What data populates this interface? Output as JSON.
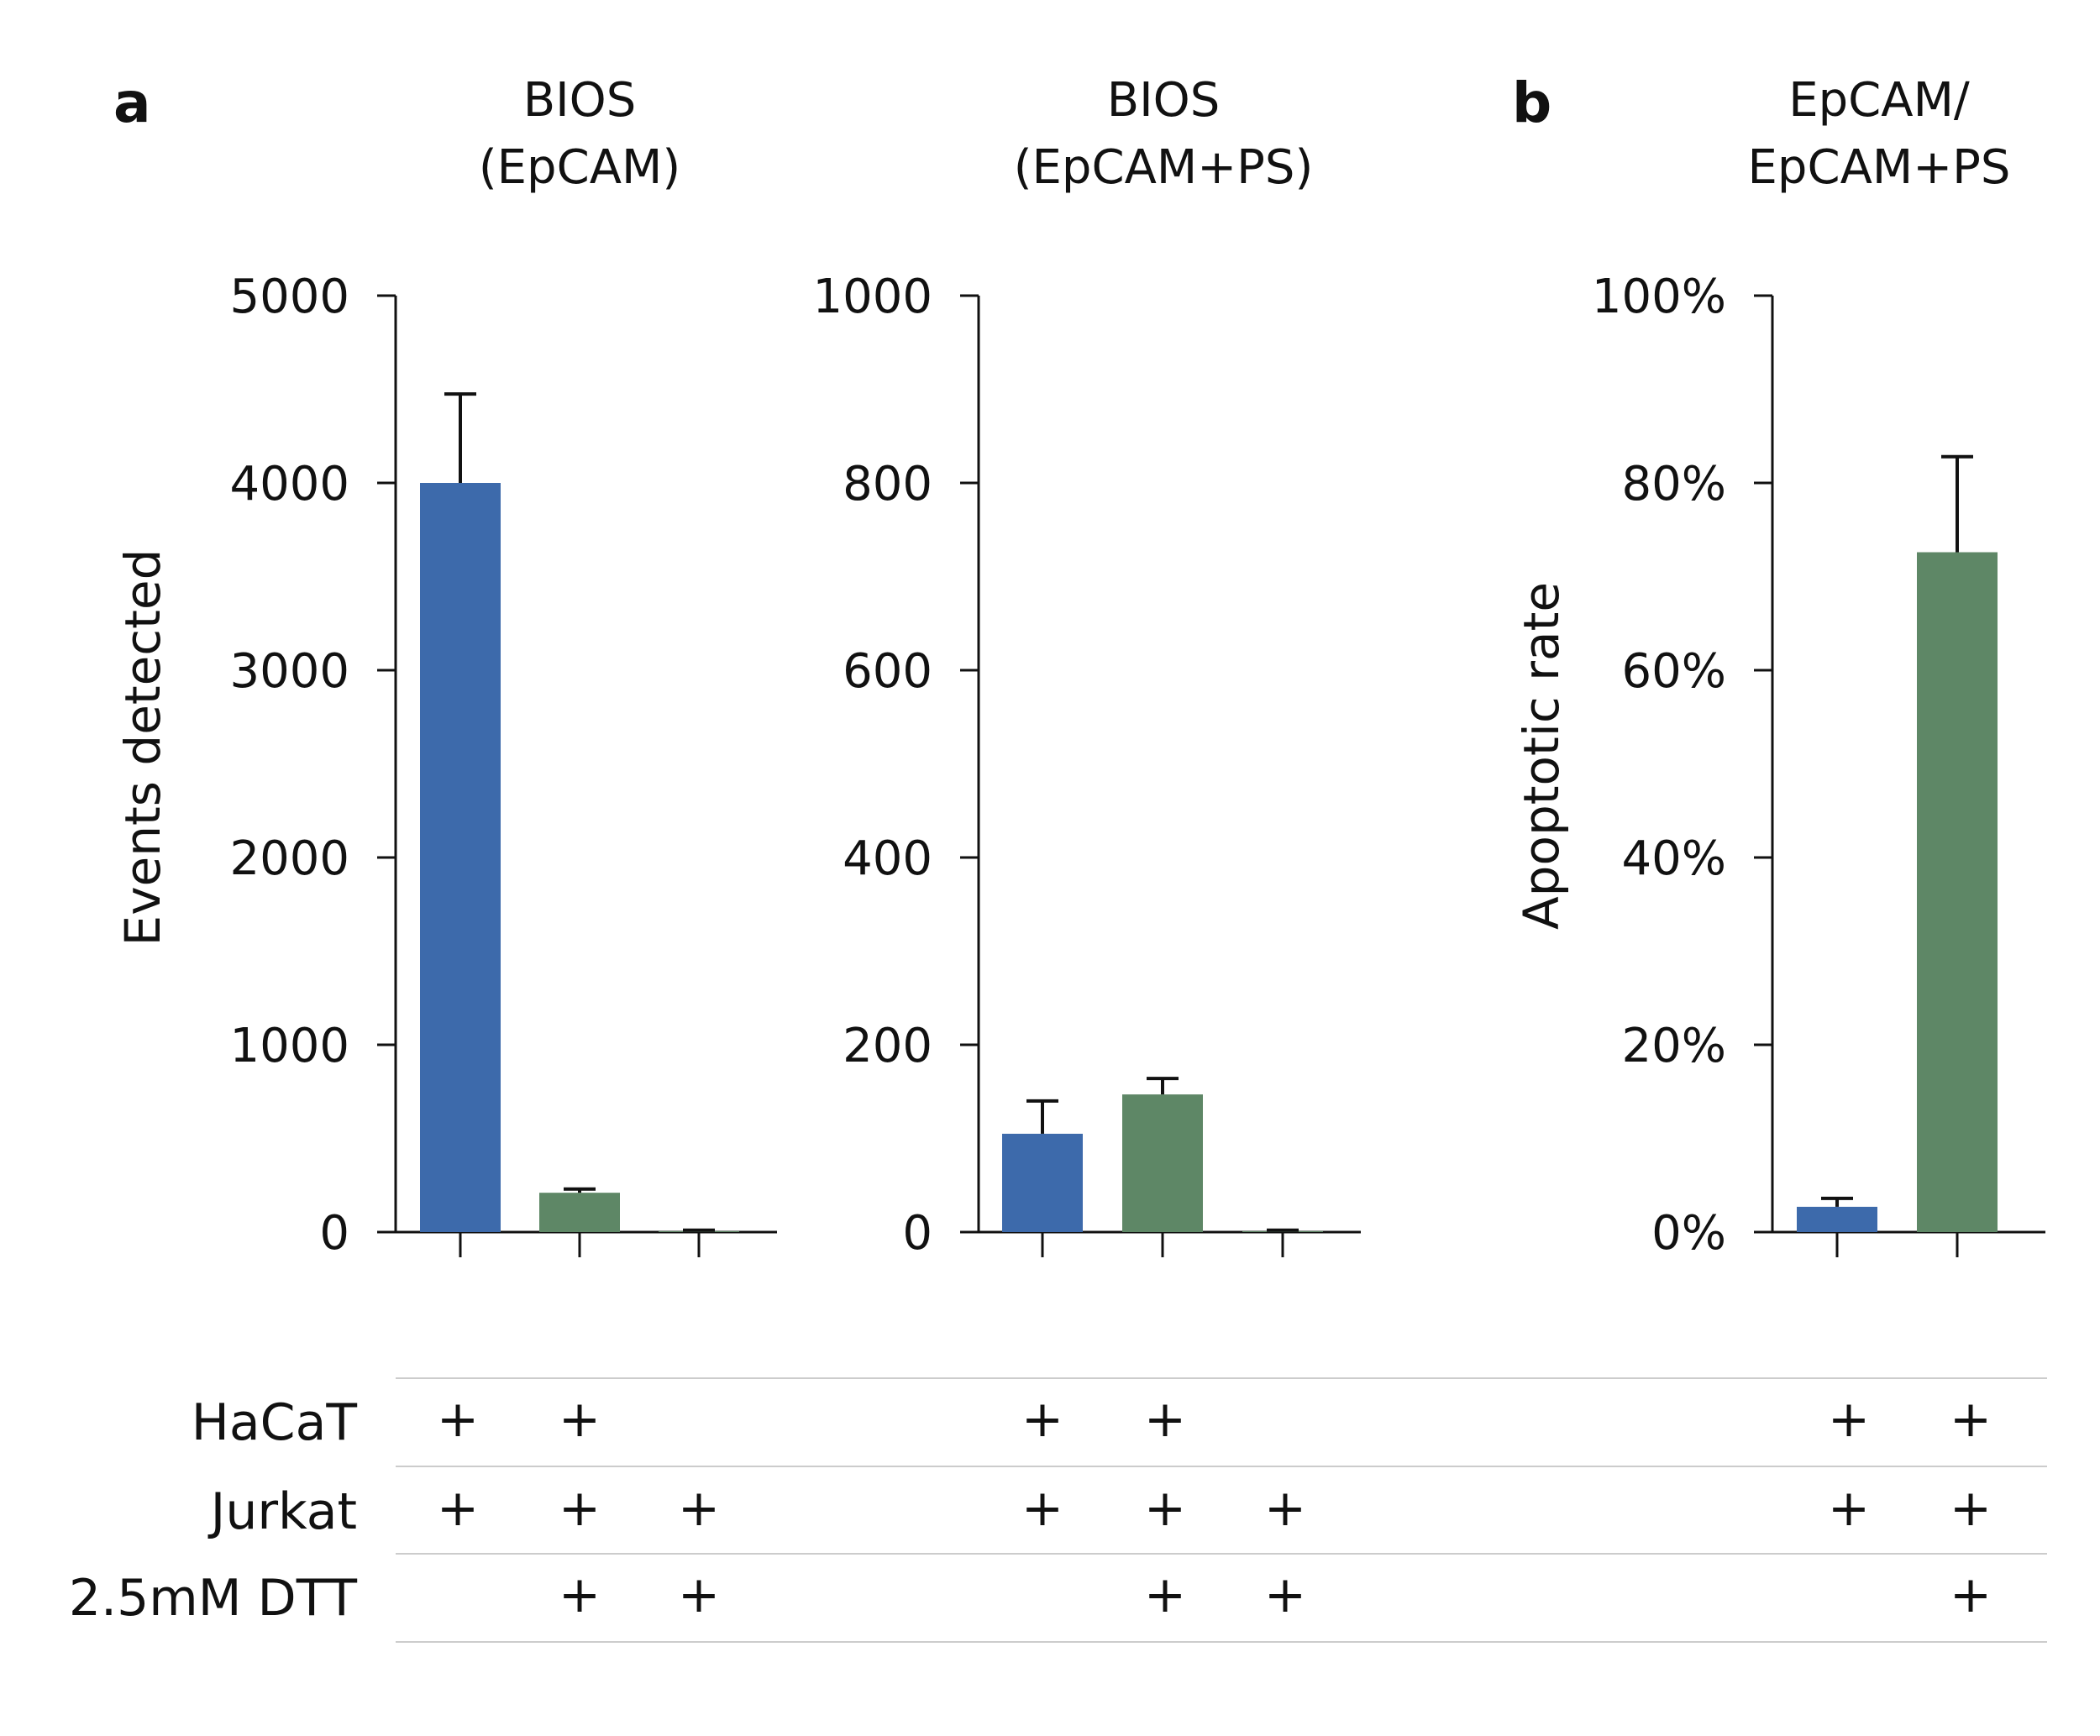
{
  "panel_labels": [
    "a",
    "b"
  ],
  "chart_data": [
    {
      "type": "bar",
      "title_lines": [
        "BIOS",
        "(EpCAM)"
      ],
      "ylabel": "Events detected",
      "ylim": [
        0,
        5000
      ],
      "yticks": [
        "0",
        "1000",
        "2000",
        "3000",
        "4000",
        "5000"
      ],
      "values": [
        4000,
        210,
        5
      ],
      "errors": [
        475,
        20,
        5
      ],
      "colors": [
        "#3d6aab",
        "#5e8766",
        "#5e8766"
      ]
    },
    {
      "type": "bar",
      "title_lines": [
        "BIOS",
        "(EpCAM+PS)"
      ],
      "ylabel": "",
      "ylim": [
        0,
        1000
      ],
      "yticks": [
        "0",
        "200",
        "400",
        "600",
        "800",
        "1000"
      ],
      "values": [
        105,
        147,
        1
      ],
      "errors": [
        35,
        17,
        1
      ],
      "colors": [
        "#3d6aab",
        "#5e8766",
        "#5e8766"
      ]
    },
    {
      "type": "bar",
      "title_lines": [
        "EpCAM/",
        "EpCAM+PS"
      ],
      "ylabel": "Apoptotic rate",
      "ylim": [
        0,
        100
      ],
      "yticks": [
        "0%",
        "20%",
        "40%",
        "60%",
        "80%",
        "100%"
      ],
      "values": [
        2.7,
        72.6
      ],
      "errors": [
        0.9,
        10.2
      ],
      "colors": [
        "#3d6aab",
        "#5e8766"
      ]
    }
  ],
  "conditions": {
    "rows": [
      "HaCaT",
      "Jurkat",
      "2.5mM  DTT"
    ],
    "plus_symbol": "+",
    "groups": [
      [
        [
          true,
          true,
          false
        ],
        [
          true,
          true,
          true
        ],
        [
          false,
          true,
          true
        ]
      ],
      [
        [
          true,
          true,
          false
        ],
        [
          true,
          true,
          true
        ],
        [
          false,
          true,
          true
        ]
      ],
      [
        [
          true,
          true
        ],
        [
          true,
          true
        ],
        [
          false,
          true
        ]
      ]
    ]
  }
}
